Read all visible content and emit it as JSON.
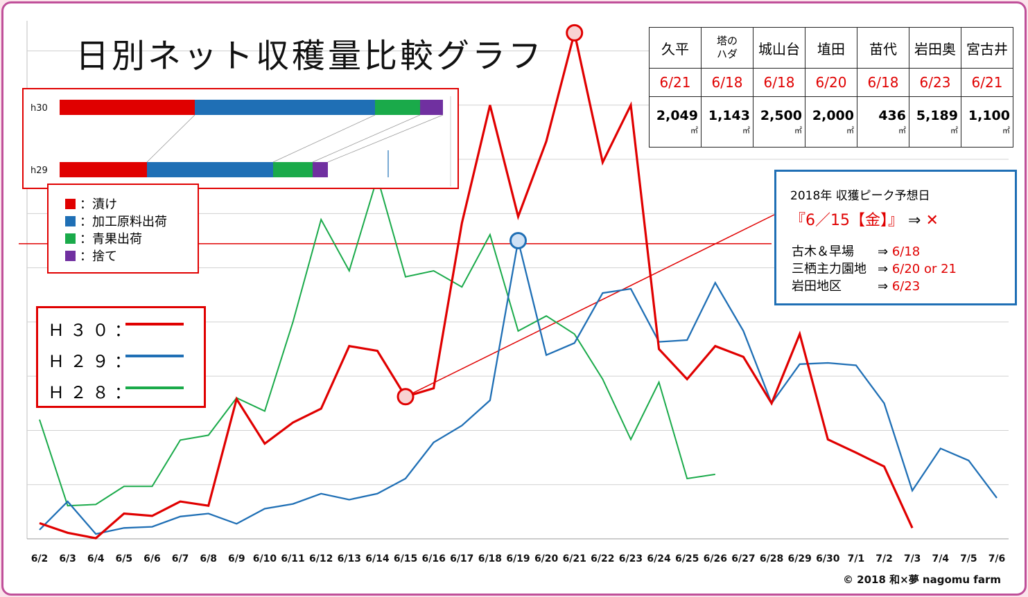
{
  "title": "日別ネット収穫量比較グラフ",
  "copyright": "© 2018 和×夢 nagomu farm",
  "colors": {
    "h30": "#e00000",
    "h29": "#1f6fb5",
    "h28": "#1aaa4a",
    "border": "#c0509a"
  },
  "summary_table": {
    "names": [
      "久平",
      "塔のハダ",
      "城山台",
      "埴田",
      "苗代",
      "岩田奥",
      "宮古井"
    ],
    "name_lines": {
      "tonohada_1": "塔の",
      "tonohada_2": "ハダ"
    },
    "dates": [
      "6/21",
      "6/18",
      "6/18",
      "6/20",
      "6/18",
      "6/23",
      "6/21"
    ],
    "areas": [
      "2,049",
      "1,143",
      "2,500",
      "2,000",
      "436",
      "5,189",
      "1,100"
    ],
    "unit": "㎡"
  },
  "bar_inset": {
    "rows": [
      {
        "label": "h30",
        "segments": [
          {
            "key": "tsuke",
            "value": 195
          },
          {
            "key": "kako",
            "value": 260
          },
          {
            "key": "seika",
            "value": 65
          },
          {
            "key": "sute",
            "value": 33
          }
        ]
      },
      {
        "label": "h29",
        "segments": [
          {
            "key": "tsuke",
            "value": 126
          },
          {
            "key": "kako",
            "value": 182
          },
          {
            "key": "seika",
            "value": 57
          },
          {
            "key": "sute",
            "value": 22
          }
        ]
      }
    ]
  },
  "legend": [
    {
      "key": "tsuke",
      "label": "：漬け",
      "color": "#e00000"
    },
    {
      "key": "kako",
      "label": "：加工原料出荷",
      "color": "#1f6fb5"
    },
    {
      "key": "seika",
      "label": "：青果出荷",
      "color": "#1aaa4a"
    },
    {
      "key": "sute",
      "label": "：捨て",
      "color": "#7030a0"
    }
  ],
  "series_legend": [
    {
      "label": "Ｈ３０：",
      "color": "#e00000"
    },
    {
      "label": "Ｈ２９：",
      "color": "#1f6fb5"
    },
    {
      "label": "Ｈ２８：",
      "color": "#1aaa4a"
    }
  ],
  "prediction": {
    "title": "2018年 収獲ピーク予想日",
    "main": "『6／15【金】』",
    "arrow": "⇒",
    "result": "✕",
    "rows": [
      {
        "label": "古木＆早場",
        "arrow": "⇒",
        "value": "6/18"
      },
      {
        "label": "三栖主力園地",
        "arrow": "⇒",
        "value": "6/20 or 21"
      },
      {
        "label": "岩田地区",
        "arrow": "⇒",
        "value": "6/23"
      }
    ]
  },
  "chart_data": {
    "type": "line",
    "x": [
      "6/2",
      "6/3",
      "6/4",
      "6/5",
      "6/6",
      "6/7",
      "6/8",
      "6/9",
      "6/10",
      "6/11",
      "6/12",
      "6/13",
      "6/14",
      "6/15",
      "6/16",
      "6/17",
      "6/18",
      "6/19",
      "6/20",
      "6/21",
      "6/22",
      "6/23",
      "6/24",
      "6/25",
      "6/26",
      "6/27",
      "6/28",
      "6/29",
      "6/30",
      "7/1",
      "7/2",
      "7/3",
      "7/4",
      "7/5",
      "7/6"
    ],
    "ylim": [
      0,
      860
    ],
    "grid": true,
    "series": [
      {
        "name": "Ｈ３０",
        "values": [
          26,
          10,
          1,
          42,
          38,
          62,
          55,
          232,
          158,
          193,
          216,
          320,
          312,
          236,
          250,
          524,
          720,
          535,
          660,
          840,
          625,
          720,
          315,
          265,
          320,
          302,
          225,
          340,
          165,
          143,
          120,
          18,
          null,
          null,
          null
        ]
      },
      {
        "name": "Ｈ２９",
        "values": [
          15,
          62,
          8,
          18,
          20,
          37,
          42,
          25,
          50,
          58,
          75,
          65,
          75,
          100,
          160,
          188,
          230,
          495,
          305,
          325,
          408,
          415,
          327,
          330,
          425,
          345,
          225,
          290,
          292,
          288,
          225,
          80,
          150,
          130,
          68
        ]
      },
      {
        "name": "Ｈ２８",
        "values": [
          198,
          55,
          57,
          87,
          87,
          164,
          172,
          234,
          212,
          360,
          530,
          445,
          600,
          435,
          445,
          418,
          505,
          345,
          370,
          340,
          265,
          165,
          260,
          100,
          107,
          null,
          null,
          null,
          null,
          null,
          null,
          null,
          null,
          null,
          null
        ]
      }
    ],
    "peaks": [
      {
        "series": "Ｈ３０",
        "x": "6/15",
        "y": 236
      },
      {
        "series": "Ｈ３０",
        "x": "6/21",
        "y": 840
      },
      {
        "series": "Ｈ２９",
        "x": "6/19",
        "y": 495
      },
      {
        "series": "Ｈ２８",
        "x": "6/14",
        "y": 600
      }
    ],
    "reference_value": 490
  }
}
